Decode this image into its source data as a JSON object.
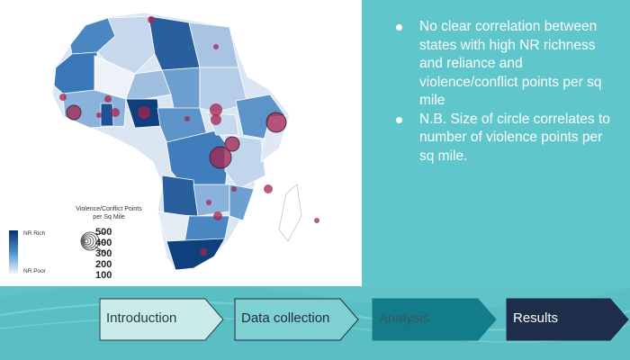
{
  "legend": {
    "title_line1": "Violence/Conflict Points",
    "title_line2": "per Sq Mile",
    "sizes": [
      "500",
      "400",
      "300",
      "200",
      "100"
    ],
    "colorbar_top": "NR Rich",
    "colorbar_bottom": "NR Poor"
  },
  "bullets": [
    "No clear correlation between states with high NR richness and reliance and violence/conflict points per sq mile",
    "N.B. Size of circle correlates to number of violence points per sq mile."
  ],
  "process_steps": [
    {
      "label": "Introduction",
      "fill": "#c9eceb",
      "text_color": "#2a3a45"
    },
    {
      "label": "Data collection",
      "fill": "#7fd0d2",
      "text_color": "#1f2d38"
    },
    {
      "label": "Analysis",
      "fill": "#127c8a",
      "text_color": "#3d5560"
    },
    {
      "label": "Results",
      "fill": "#1e2d4a",
      "text_color": "#ffffff"
    }
  ],
  "colors": {
    "background": "#5fc3c7",
    "bubble": "#a8224e"
  }
}
